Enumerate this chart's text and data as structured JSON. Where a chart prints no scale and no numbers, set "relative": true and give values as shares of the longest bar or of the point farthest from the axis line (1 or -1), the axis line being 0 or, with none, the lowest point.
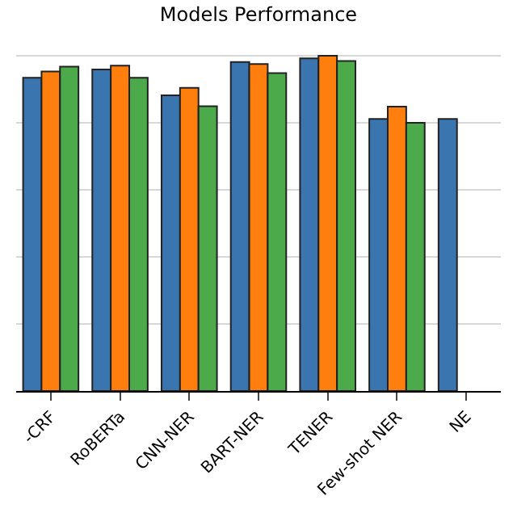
{
  "chart_data": {
    "type": "bar",
    "title": "Models Performance",
    "relative": true,
    "grid": "y",
    "categories": [
      "-CRF",
      "RoBERTa",
      "CNN-NER",
      "BART-NER",
      "TENER",
      "Few-shot NER",
      "NE"
    ],
    "series": [
      {
        "color": "#3a75b0",
        "values": [
          0.934,
          0.959,
          0.882,
          0.981,
          0.992,
          0.811,
          0.811
        ]
      },
      {
        "color": "#ff7f0e",
        "values": [
          0.953,
          0.97,
          0.904,
          0.975,
          1.0,
          0.848,
          null
        ]
      },
      {
        "color": "#4caa4a",
        "values": [
          0.967,
          0.934,
          0.849,
          0.948,
          0.984,
          0.8,
          null
        ]
      }
    ]
  }
}
